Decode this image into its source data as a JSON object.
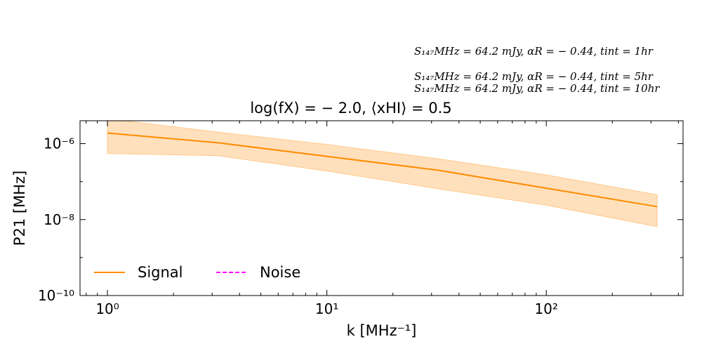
{
  "annotations": [
    "S₁₄₇MHz = 64.2 mJy,  αR = − 0.44,  tint = 1hr",
    "S₁₄₇MHz = 64.2 mJy,  αR = − 0.44,  tint = 5hr",
    "S₁₄₇MHz = 64.2 mJy,  αR = − 0.44,  tint = 10hr"
  ],
  "chart_data": {
    "type": "line",
    "title": "log(fX) = − 2.0,  ⟨xHI⟩ = 0.5",
    "xlabel": "k [MHz⁻¹]",
    "ylabel": "P21 [MHz]",
    "xscale": "log",
    "yscale": "log",
    "xlim": [
      0.75,
      420
    ],
    "ylim": [
      1e-10,
      4e-06
    ],
    "xticks": [
      {
        "value": 1,
        "label": "10⁰"
      },
      {
        "value": 10,
        "label": "10¹"
      },
      {
        "value": 100,
        "label": "10²"
      }
    ],
    "yticks": [
      {
        "value": 1e-06,
        "label": "10⁻⁶"
      },
      {
        "value": 1e-08,
        "label": "10⁻⁸"
      },
      {
        "value": 1e-10,
        "label": "10⁻¹⁰"
      }
    ],
    "grid": false,
    "legend": {
      "placement": "lower-left",
      "entries": [
        "Signal",
        "Noise"
      ]
    },
    "series": [
      {
        "name": "Signal",
        "color": "#ff8c00",
        "style": "solid",
        "x": [
          1,
          3.2,
          10,
          32,
          100,
          320
        ],
        "y": [
          1.9e-06,
          1.05e-06,
          4.6e-07,
          2e-07,
          6.7e-08,
          2.2e-08
        ],
        "band_lower": [
          5.5e-07,
          4.8e-07,
          1.9e-07,
          6.5e-08,
          2.4e-08,
          6.5e-09
        ],
        "band_upper": [
          4.5e-06,
          2e-06,
          9.5e-07,
          4e-07,
          1.5e-07,
          4.5e-08
        ],
        "band_color": "#ffe0bd"
      },
      {
        "name": "Noise",
        "color": "#ff00ff",
        "style": "dashed",
        "x": [],
        "y": []
      }
    ]
  }
}
